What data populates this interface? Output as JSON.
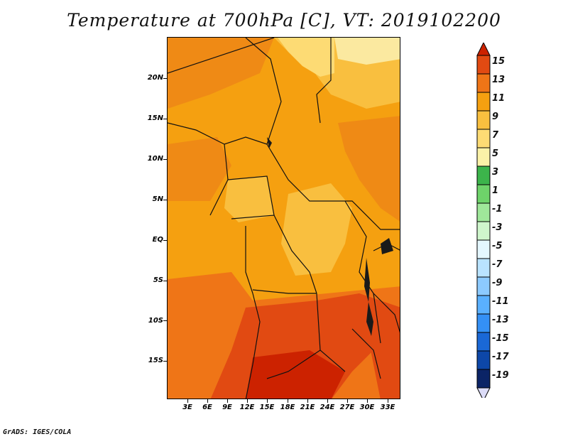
{
  "title": "Temperature at 700hPa [C], VT: 2019102200",
  "credit": "GrADS: IGES/COLA",
  "map": {
    "lon_range": [
      0,
      35
    ],
    "lat_range": [
      -20,
      25
    ],
    "lat_labels": [
      "20N",
      "15N",
      "10N",
      "5N",
      "EQ",
      "5S",
      "10S",
      "15S"
    ],
    "lon_labels": [
      "3E",
      "6E",
      "9E",
      "12E",
      "15E",
      "18E",
      "21E",
      "24E",
      "27E",
      "30E",
      "33E"
    ]
  },
  "colorbar": {
    "labels": [
      "15",
      "13",
      "11",
      "9",
      "7",
      "5",
      "3",
      "1",
      "-1",
      "-3",
      "-5",
      "-7",
      "-9",
      "-11",
      "-13",
      "-15",
      "-17",
      "-19"
    ],
    "colors": [
      "#cc2200",
      "#e14a12",
      "#ef7517",
      "#f5a010",
      "#f9bf3f",
      "#fddb74",
      "#fbf2a8",
      "#3cb44b",
      "#6ed36a",
      "#9fe79a",
      "#cff6cc",
      "#e4f7ff",
      "#b9e3ff",
      "#8ccaff",
      "#5ab0ff",
      "#3490f5",
      "#1a68d6",
      "#0d47a8",
      "#0b2466",
      "#dcdcf8"
    ]
  }
}
